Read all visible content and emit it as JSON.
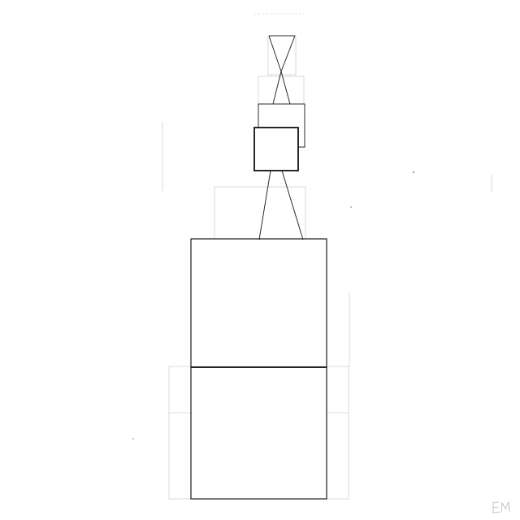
{
  "artwork": {
    "signature": "EM",
    "colors": {
      "paper": "#ffffff",
      "ink": "#1a1a1a",
      "guide": "#cfcfcf"
    }
  }
}
